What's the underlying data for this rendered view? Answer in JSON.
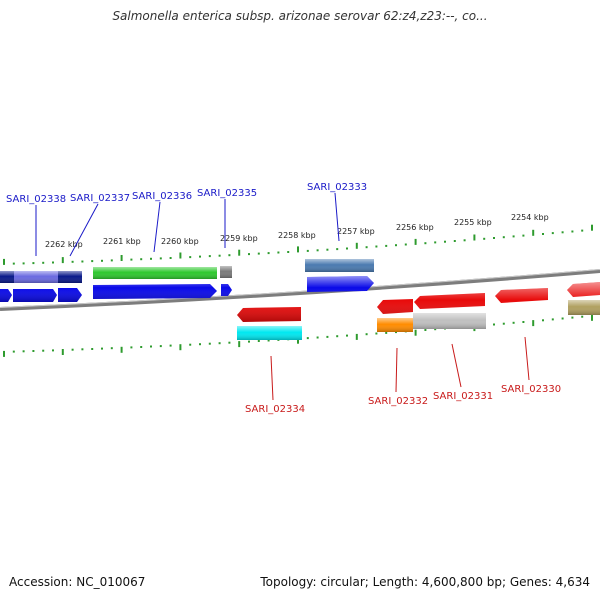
{
  "title": "Salmonella enterica subsp. arizonae serovar 62:z4,z23:--, co...",
  "footer": {
    "accession": "Accession: NC_010067",
    "summary": "Topology: circular; Length: 4,600,800 bp; Genes: 4,634"
  },
  "colors": {
    "backbone": "#8a8a8a",
    "tick": "#2e9b2e",
    "forward_label": "#1a1ac8",
    "reverse_label": "#c81a1a"
  },
  "scale_ticks": [
    "2262 kbp",
    "2261 kbp",
    "2260 kbp",
    "2259 kbp",
    "2258 kbp",
    "2257 kbp",
    "2256 kbp",
    "2255 kbp",
    "2254 kbp"
  ],
  "labels": {
    "forward": [
      "SARI_02338",
      "SARI_02337",
      "SARI_02336",
      "SARI_02335",
      "SARI_02333"
    ],
    "reverse": [
      "SARI_02334",
      "SARI_02332",
      "SARI_02331",
      "SARI_02330"
    ]
  },
  "features": {
    "top_lane": [
      {
        "color": "#0a1a8a"
      },
      {
        "color": "#6a6ae0"
      },
      {
        "color": "#0a1a8a"
      },
      {
        "color": "#2ec82e"
      },
      {
        "color": "#7a7a7a"
      },
      {
        "color": "#4a7ab0"
      }
    ],
    "forward_cds": [
      {
        "color": "#0a0ae8"
      },
      {
        "color": "#0a0ae8"
      },
      {
        "color": "#0a0ae8"
      },
      {
        "color": "#0a0ae8"
      },
      {
        "color": "#0a0ae8"
      },
      {
        "color": "#0a0ae8"
      }
    ],
    "reverse_cds": [
      {
        "color": "#e80a0a"
      },
      {
        "color": "#e80a0a"
      },
      {
        "color": "#e80a0a"
      },
      {
        "color": "#e80a0a"
      },
      {
        "color": "#e80a0a"
      }
    ],
    "bottom_lane": [
      {
        "color": "#00e8f0"
      },
      {
        "color": "#ff8c00"
      },
      {
        "color": "#c0c0c0"
      },
      {
        "color": "#b0a060"
      }
    ]
  }
}
